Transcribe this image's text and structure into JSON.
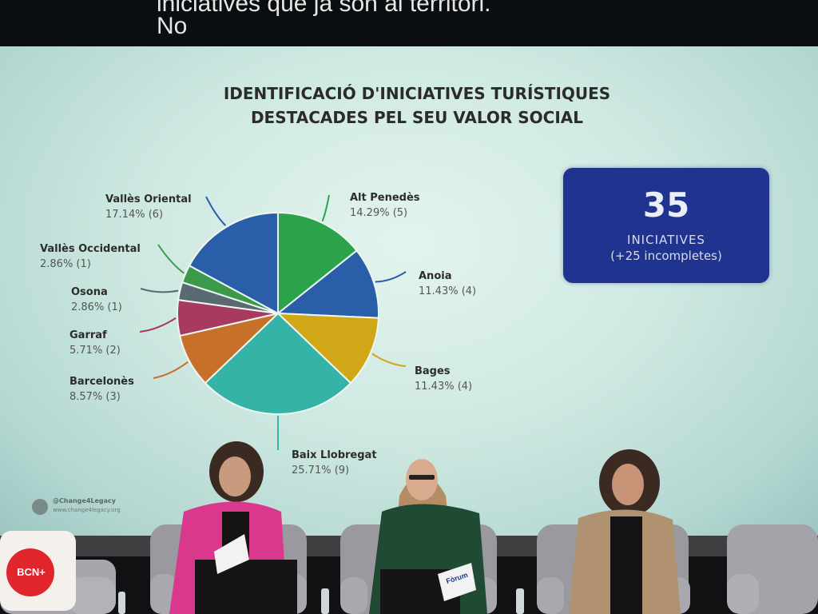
{
  "caption": {
    "line1": "iniciatives que ja són al territori.",
    "line2": "No"
  },
  "slide": {
    "title_line1": "IDENTIFICACIÓ D'INICIATIVES TURÍSTIQUES",
    "title_line2": "DESTACADES PEL SEU VALOR SOCIAL",
    "stat_number": "35",
    "stat_label": "INICIATIVES",
    "stat_sublabel": "(+25 incompletes)",
    "footer_handle": "@Change4Legacy",
    "footer_url": "www.change4legacy.org"
  },
  "chart_data": {
    "type": "pie",
    "title": "IDENTIFICACIÓ D'INICIATIVES TURÍSTIQUES DESTACADES PEL SEU VALOR SOCIAL",
    "slices": [
      {
        "name": "Alt Penedès",
        "value_label": "14.29% (5)",
        "percent": 14.29,
        "count": 5,
        "color": "#2aa34a"
      },
      {
        "name": "Anoia",
        "value_label": "11.43% (4)",
        "percent": 11.43,
        "count": 4,
        "color": "#2a5ea8"
      },
      {
        "name": "Bages",
        "value_label": "11.43% (4)",
        "percent": 11.43,
        "count": 4,
        "color": "#d0a817"
      },
      {
        "name": "Baix Llobregat",
        "value_label": "25.71% (9)",
        "percent": 25.71,
        "count": 9,
        "color": "#35b3a6"
      },
      {
        "name": "Barcelonès",
        "value_label": "8.57% (3)",
        "percent": 8.57,
        "count": 3,
        "color": "#c7702a"
      },
      {
        "name": "Garraf",
        "value_label": "5.71% (2)",
        "percent": 5.71,
        "count": 2,
        "color": "#a83a60"
      },
      {
        "name": "Osona",
        "value_label": "2.86% (1)",
        "percent": 2.86,
        "count": 1,
        "color": "#5a6a73"
      },
      {
        "name": "Vallès Occidental",
        "value_label": "2.86% (1)",
        "percent": 2.86,
        "count": 1,
        "color": "#3a9a4a"
      },
      {
        "name": "Vallès Oriental",
        "value_label": "17.14% (6)",
        "percent": 17.14,
        "count": 6,
        "color": "#2a5ea8"
      }
    ]
  },
  "stage": {
    "cushion_logo": "BCN+",
    "card_text": "Fòrum"
  }
}
